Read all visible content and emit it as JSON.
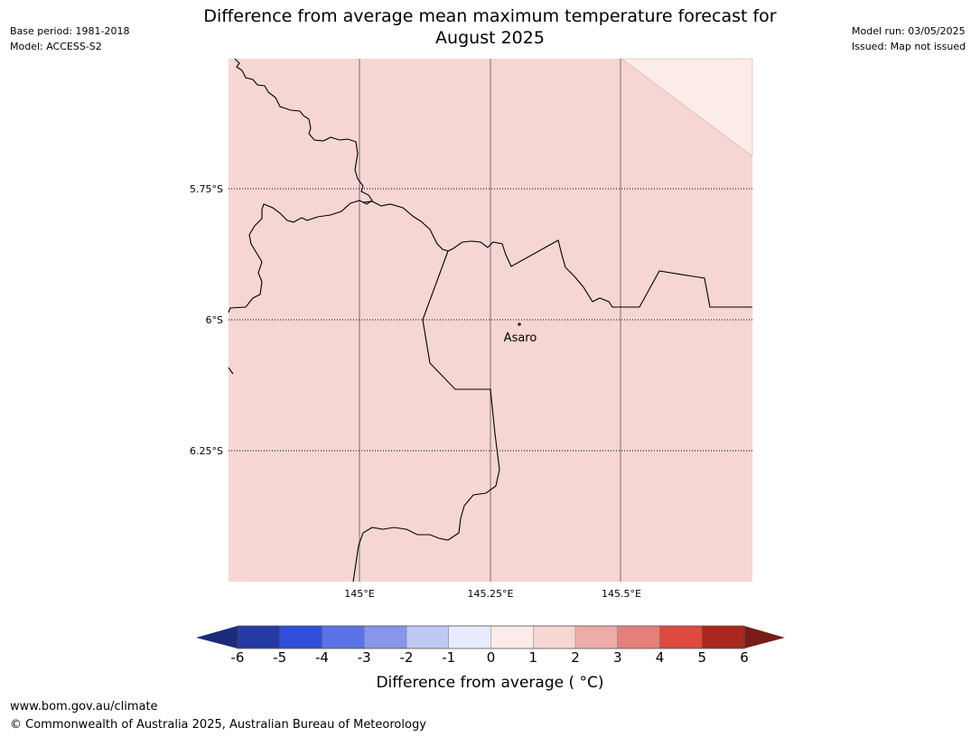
{
  "header": {
    "base_period": "Base period: 1981-2018",
    "model": "Model: ACCESS-S2",
    "model_run": "Model run: 03/05/2025",
    "issued": "Issued: Map not issued",
    "title_line1": "Difference from average mean maximum temperature forecast for",
    "title_line2": "August 2025"
  },
  "map": {
    "lat_labels": [
      "5.75°S",
      "6°S",
      "6.25°S"
    ],
    "lon_labels": [
      "145°E",
      "145.25°E",
      "145.5°E"
    ],
    "place": {
      "name": "Asaro"
    },
    "fill_color": "#f5d6d3",
    "corner_color": "#fbebe9",
    "category": "1 to 2"
  },
  "colorbar": {
    "labels": [
      "-6",
      "-5",
      "-4",
      "-3",
      "-2",
      "-1",
      "0",
      "1",
      "2",
      "3",
      "4",
      "5",
      "6"
    ],
    "colors": [
      "#263aa4",
      "#3050dc",
      "#5a72e4",
      "#8796ea",
      "#c0c8f4",
      "#e8ebfb",
      "#fbebe9",
      "#f5d6d3",
      "#edaca8",
      "#e4807a",
      "#dc4a40",
      "#aa2820"
    ],
    "under_color": "#1c2a7a",
    "over_color": "#781c18",
    "title": "Difference from average ( °C)"
  },
  "footer": {
    "url": "www.bom.gov.au/climate",
    "copyright": "© Commonwealth of Australia 2025, Australian Bureau of Meteorology"
  }
}
